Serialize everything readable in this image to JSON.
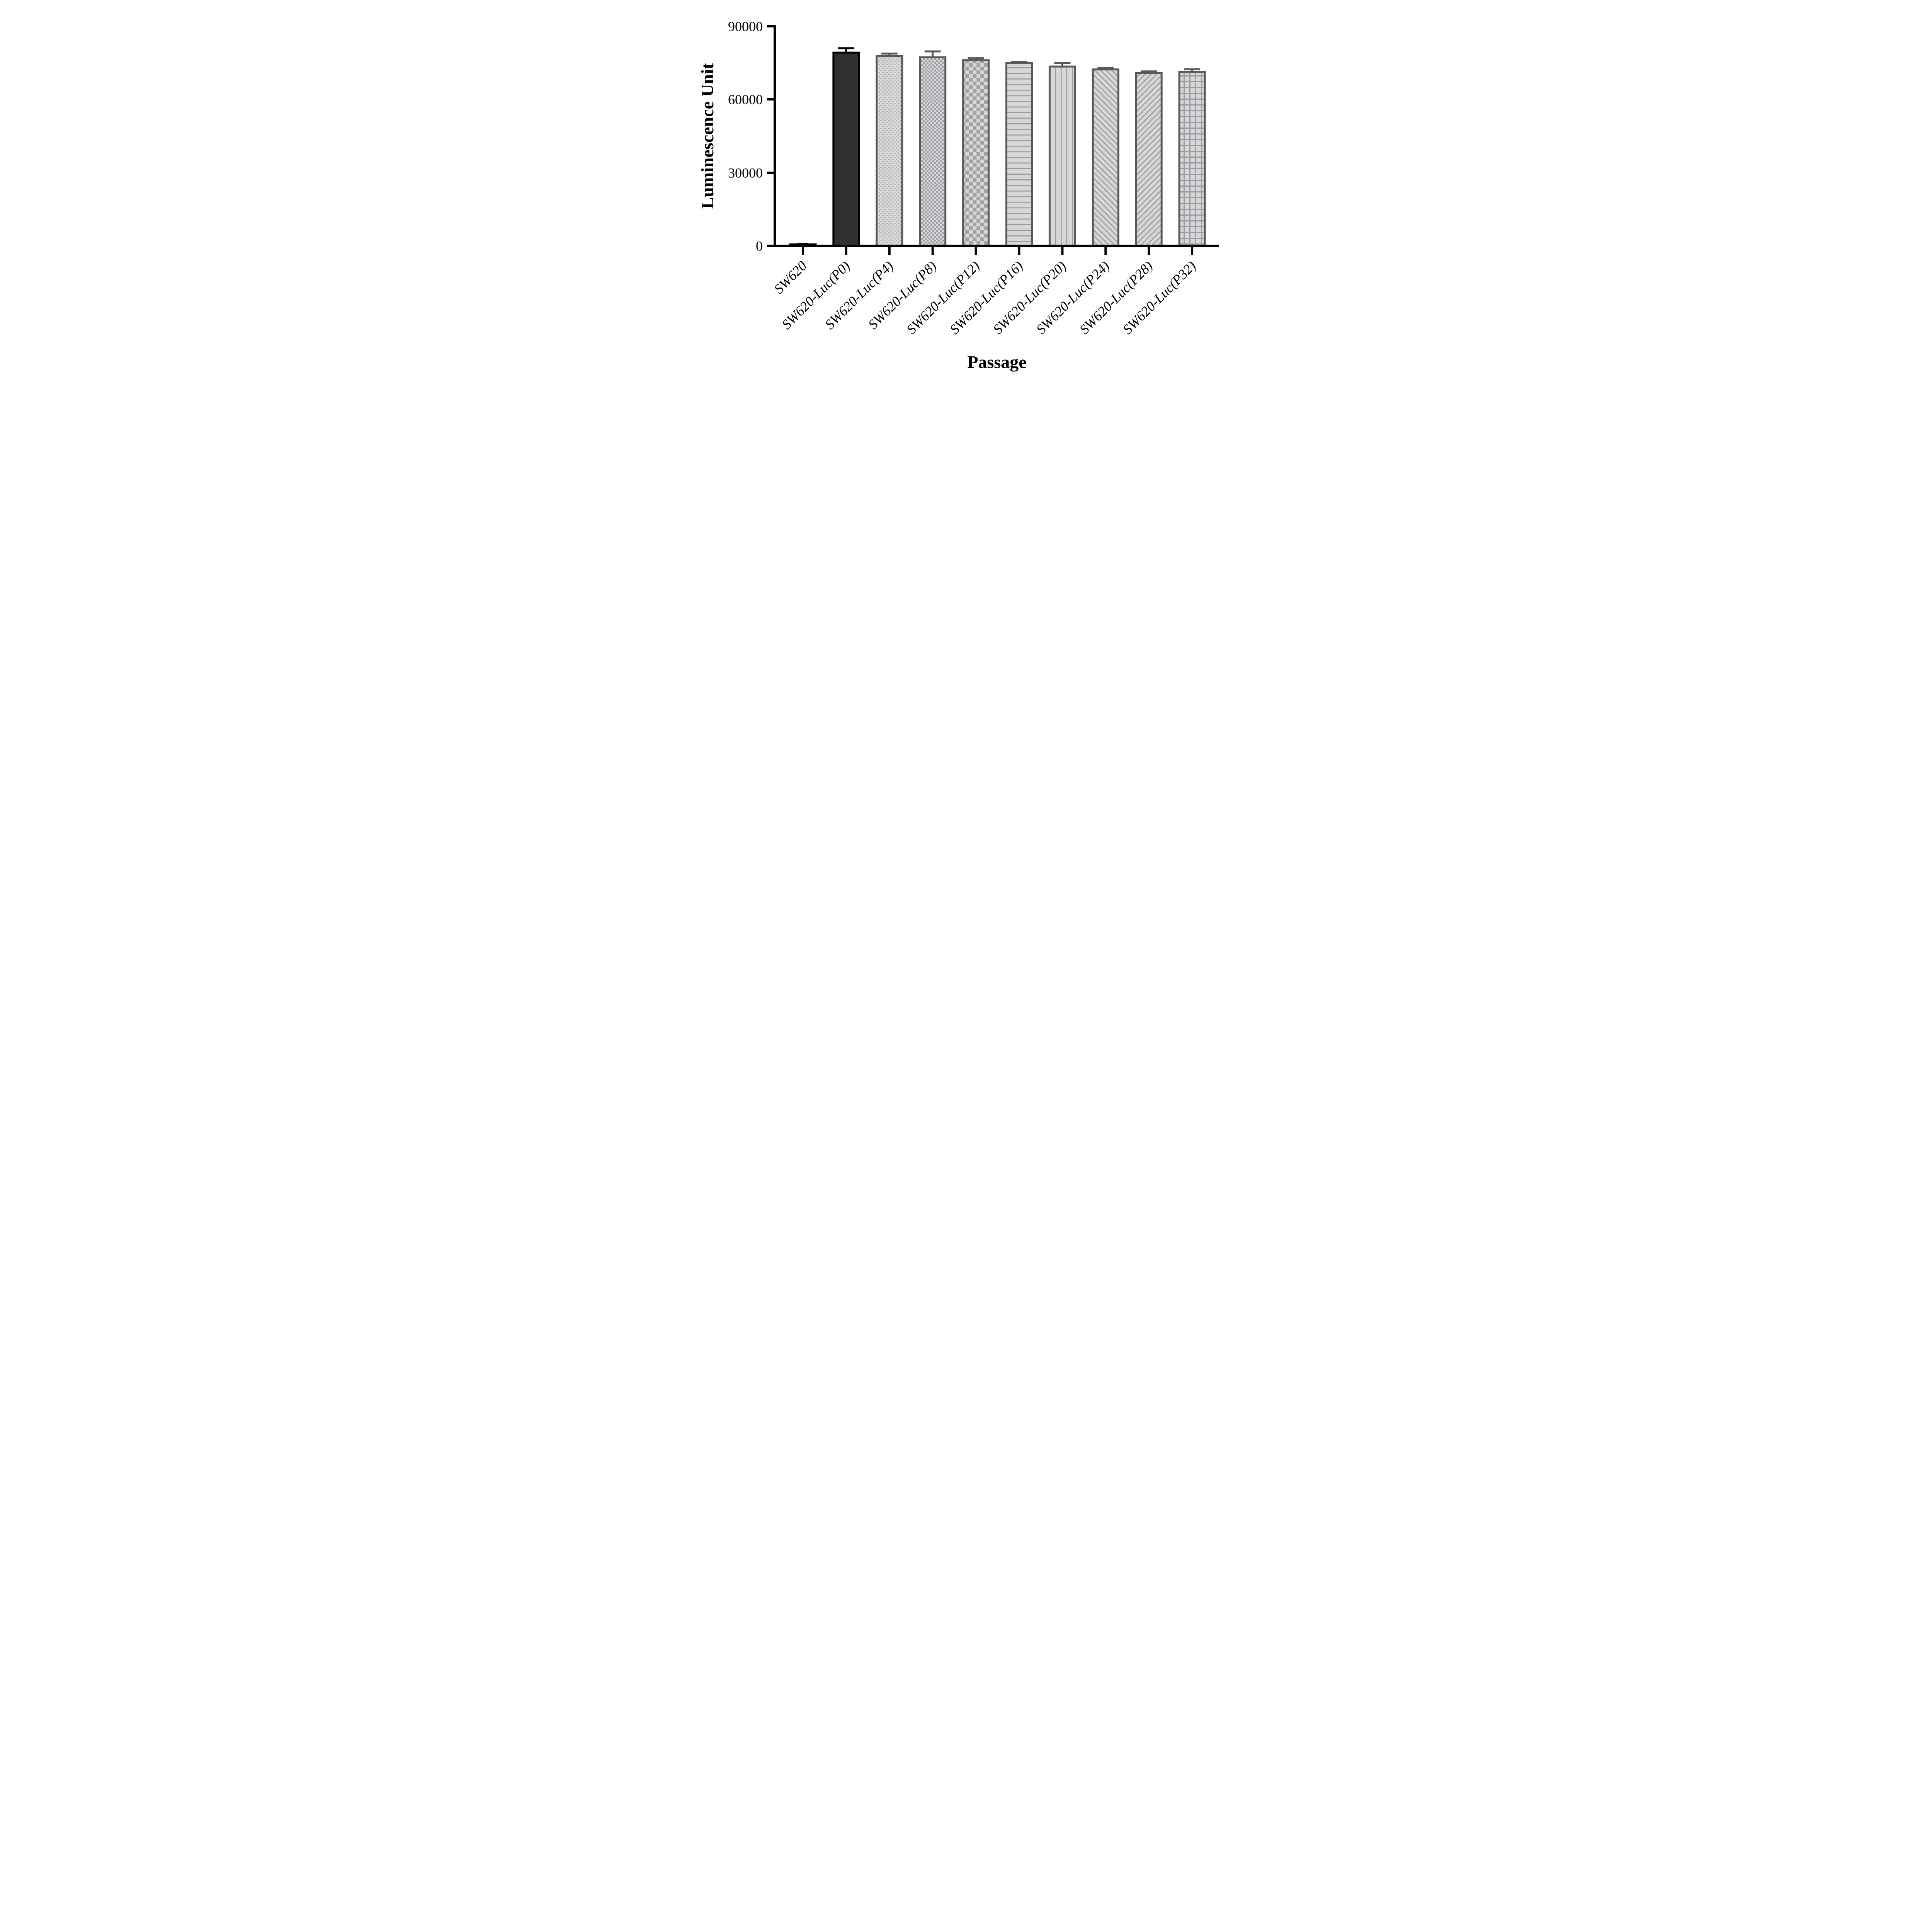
{
  "chart_data": {
    "type": "bar",
    "title": "",
    "xlabel": "Passage",
    "ylabel": "Luminescence Unit",
    "ylim": [
      0,
      90000
    ],
    "yticks": [
      0,
      30000,
      60000,
      90000
    ],
    "ytick_labels": [
      "0",
      "30000",
      "60000",
      "90000"
    ],
    "grid": false,
    "legend_position": "none",
    "categories": [
      "SW620",
      "SW620-Luc(P0)",
      "SW620-Luc(P4)",
      "SW620-Luc(P8)",
      "SW620-Luc(P12)",
      "SW620-Luc(P16)",
      "SW620-Luc(P20)",
      "SW620-Luc(P24)",
      "SW620-Luc(P28)",
      "SW620-Luc(P32)"
    ],
    "values": [
      600,
      79200,
      77800,
      77300,
      76100,
      74900,
      73500,
      72300,
      70800,
      71300
    ],
    "errors": [
      250,
      1800,
      1000,
      2400,
      800,
      500,
      1400,
      600,
      700,
      1100
    ],
    "error_direction": "plus",
    "bar_patterns": [
      "solid",
      "solid",
      "dots",
      "checker-fine",
      "checker-coarse",
      "h-lines",
      "v-lines",
      "diag-up",
      "diag-down",
      "grid"
    ],
    "colors": {
      "dark_fill": "#303030",
      "dark_border": "#000000",
      "pattern_bg": "#d7d7d9",
      "pattern_fg": "#9b9ba0",
      "checker_fg": "#a0a0a5",
      "gray_border": "#595959",
      "axis": "#000000",
      "background": "#ffffff"
    }
  }
}
